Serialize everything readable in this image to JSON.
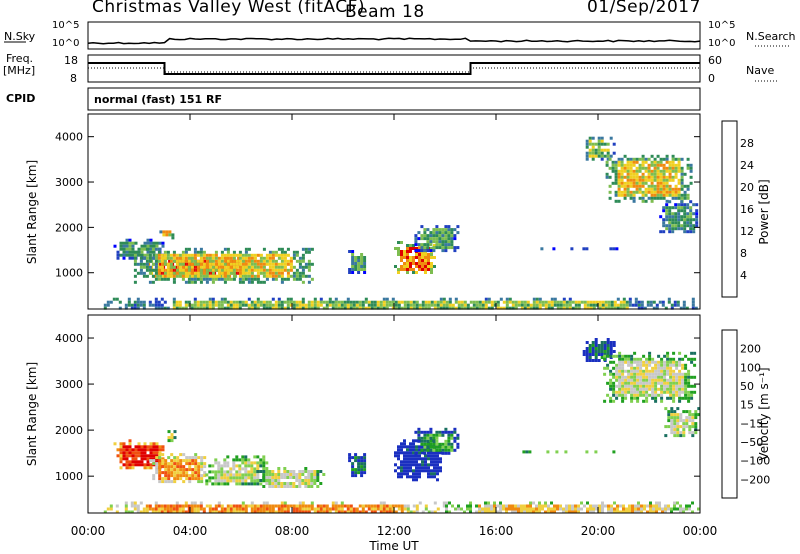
{
  "header": {
    "station": "Christmas Valley West (fitACF)",
    "beam": "Beam 18",
    "date": "01/Sep/2017"
  },
  "strips": {
    "nsky_label": "N.Sky",
    "nsky_ticks": [
      "10^5",
      "10^0"
    ],
    "nsearch_label": "N.Search",
    "nsearch_ticks": [
      "10^5",
      "10^0"
    ],
    "freq_label_1": "Freq.",
    "freq_label_2": "[MHz]",
    "freq_ticks": [
      "18",
      "8"
    ],
    "nave_label": "Nave",
    "nave_ticks": [
      "60",
      "0"
    ],
    "cpid_label": "CPID",
    "cpid_text": "normal (fast) 151 RF"
  },
  "colors": {
    "power": [
      "#0000ff",
      "#2040c0",
      "#3a78a0",
      "#2e8b57",
      "#7dbd50",
      "#f0d020",
      "#f08a10",
      "#e00000"
    ],
    "velocity": [
      "#1a2fc0",
      "#1a7060",
      "#20a020",
      "#80d050",
      "#c8c8c8",
      "#f0d040",
      "#f08a10",
      "#f05010",
      "#e00000"
    ],
    "ground": "#d0d0d0"
  },
  "chart_data": [
    {
      "type": "heatmap",
      "name": "power",
      "ylabel": "Slant Range [km]",
      "xlabel": "Time UT",
      "x_ticks": [
        "00:00",
        "04:00",
        "08:00",
        "12:00",
        "16:00",
        "20:00",
        "00:00"
      ],
      "y_ticks": [
        "1000",
        "2000",
        "3000",
        "4000"
      ],
      "colorbar_label": "Power [dB]",
      "colorbar_ticks": [
        "4",
        "8",
        "12",
        "16",
        "20",
        "24",
        "28"
      ],
      "ylim": [
        200,
        4500
      ],
      "xlim_hours": [
        0,
        24
      ],
      "echo_regions": [
        {
          "t": [
            1.0,
            2.9
          ],
          "r": [
            1300,
            1750
          ],
          "level": 3
        },
        {
          "t": [
            2.2,
            6.4
          ],
          "r": [
            900,
            1350
          ],
          "level": 7
        },
        {
          "t": [
            1.8,
            8.8
          ],
          "r": [
            800,
            1550
          ],
          "level": 5
        },
        {
          "t": [
            2.8,
            3.3
          ],
          "r": [
            1800,
            2000
          ],
          "level": 5
        },
        {
          "t": [
            10.2,
            10.9
          ],
          "r": [
            1000,
            1500
          ],
          "level": 3
        },
        {
          "t": [
            12.0,
            13.6
          ],
          "r": [
            1000,
            1700
          ],
          "level": 6
        },
        {
          "t": [
            12.8,
            14.5
          ],
          "r": [
            1500,
            2050
          ],
          "level": 3
        },
        {
          "t": [
            16.8,
            21.2
          ],
          "r": [
            1500,
            1560
          ],
          "level": 3
        },
        {
          "t": [
            19.4,
            20.6
          ],
          "r": [
            3500,
            4000
          ],
          "level": 4
        },
        {
          "t": [
            20.3,
            23.6
          ],
          "r": [
            2600,
            3600
          ],
          "level": 5
        },
        {
          "t": [
            22.4,
            23.9
          ],
          "r": [
            1900,
            2600
          ],
          "level": 3
        },
        {
          "t": [
            0.5,
            23.9
          ],
          "r": [
            200,
            450
          ],
          "level": 4
        }
      ]
    },
    {
      "type": "heatmap",
      "name": "velocity",
      "ylabel": "Slant Range [km]",
      "xlabel": "Time UT",
      "x_ticks": [
        "00:00",
        "04:00",
        "08:00",
        "12:00",
        "16:00",
        "20:00",
        "00:00"
      ],
      "y_ticks": [
        "1000",
        "2000",
        "3000",
        "4000"
      ],
      "colorbar_label": "Velocity [m s⁻¹]",
      "colorbar_ticks": [
        "200",
        "100",
        "50",
        "15",
        "−15",
        "−50",
        "−100",
        "−200"
      ],
      "ylim": [
        200,
        4500
      ],
      "xlim_hours": [
        0,
        24
      ],
      "echo_regions": [
        {
          "t": [
            1.0,
            3.0
          ],
          "r": [
            1150,
            1800
          ],
          "level": 8
        },
        {
          "t": [
            2.4,
            4.6
          ],
          "r": [
            850,
            1500
          ],
          "level": 6
        },
        {
          "t": [
            4.6,
            7.0
          ],
          "r": [
            800,
            1450
          ],
          "level": 4
        },
        {
          "t": [
            6.6,
            9.2
          ],
          "r": [
            750,
            1200
          ],
          "level": 4
        },
        {
          "t": [
            3.0,
            3.4
          ],
          "r": [
            1800,
            2000
          ],
          "level": 4
        },
        {
          "t": [
            10.2,
            10.9
          ],
          "r": [
            1000,
            1500
          ],
          "level": 1
        },
        {
          "t": [
            12.0,
            13.8
          ],
          "r": [
            950,
            1800
          ],
          "level": 0
        },
        {
          "t": [
            12.8,
            14.5
          ],
          "r": [
            1500,
            2050
          ],
          "level": 2
        },
        {
          "t": [
            16.8,
            21.2
          ],
          "r": [
            1500,
            1560
          ],
          "level": 4
        },
        {
          "t": [
            19.4,
            20.6
          ],
          "r": [
            3500,
            4000
          ],
          "level": 1
        },
        {
          "t": [
            20.2,
            23.8
          ],
          "r": [
            2600,
            3700
          ],
          "level": 4
        },
        {
          "t": [
            22.6,
            23.9
          ],
          "r": [
            1900,
            2500
          ],
          "level": 4
        },
        {
          "t": [
            0.5,
            14.0
          ],
          "r": [
            200,
            450
          ],
          "level": 6
        },
        {
          "t": [
            14.0,
            23.9
          ],
          "r": [
            200,
            450
          ],
          "level": 5
        }
      ]
    }
  ]
}
